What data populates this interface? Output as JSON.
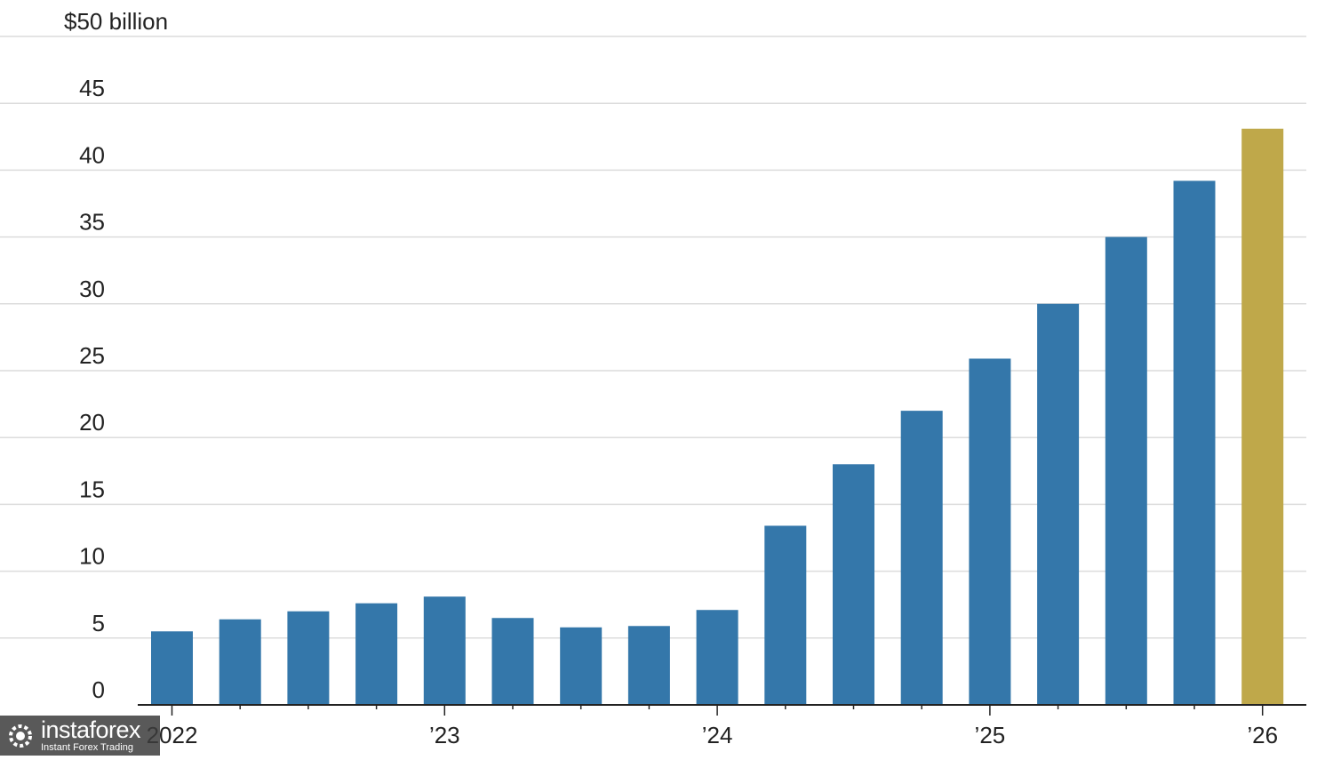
{
  "chart_data": {
    "type": "bar",
    "unit_label": "$50 billion",
    "y_ticks": [
      "45",
      "40",
      "35",
      "30",
      "25",
      "20",
      "15",
      "10",
      "5",
      "0"
    ],
    "ylim": [
      0,
      50
    ],
    "grid": true,
    "x_tick_labels": [
      "2022",
      "’23",
      "’24",
      "’25",
      "’26"
    ],
    "values": [
      5.5,
      6.4,
      7.0,
      7.6,
      8.1,
      6.5,
      5.8,
      5.9,
      7.1,
      13.4,
      18.0,
      22.0,
      25.9,
      30.0,
      35.0,
      39.2,
      43.1
    ],
    "highlight_index": 16,
    "colors": {
      "bar": "#3477aa",
      "highlight": "#bfa84a",
      "grid": "#dcdcdc",
      "axis": "#222222"
    }
  },
  "watermark": {
    "brand": "instaforex",
    "tagline": "Instant Forex Trading",
    "icon": "gear-logo-icon"
  }
}
